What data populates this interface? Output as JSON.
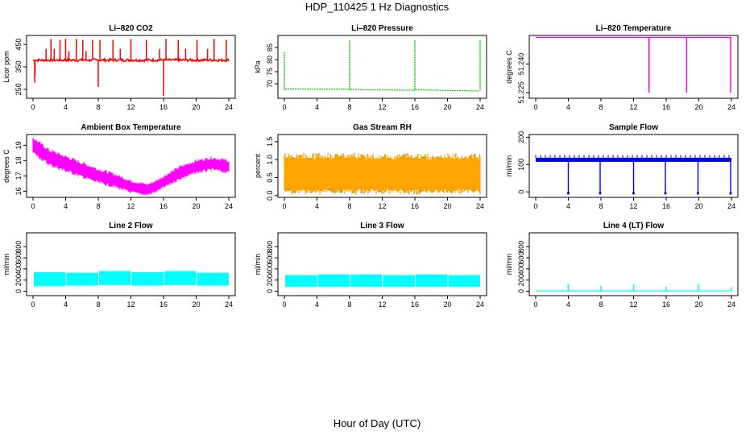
{
  "figure": {
    "title": "HDP_110425  1 Hz Diagnostics",
    "xlabel": "Hour of Day (UTC)"
  },
  "chart_data": [
    {
      "type": "line",
      "title": "Li–820 CO2",
      "ylabel": "Licor ppm",
      "color": "#ff0000",
      "xlim": [
        0,
        24
      ],
      "xticks": [
        "0",
        "4",
        "8",
        "12",
        "16",
        "20",
        "24"
      ],
      "ylim": [
        210,
        490
      ],
      "yticks": [
        250,
        350,
        450
      ],
      "ytick_labels": [
        "250",
        "350",
        "450"
      ],
      "baseline": 380,
      "noise": 6,
      "spikes": [
        {
          "x": 0.2,
          "y": 280
        },
        {
          "x": 0.25,
          "y": 310
        },
        {
          "x": 1.6,
          "y": 430
        },
        {
          "x": 2.2,
          "y": 475
        },
        {
          "x": 2.6,
          "y": 430
        },
        {
          "x": 3.3,
          "y": 470
        },
        {
          "x": 4.0,
          "y": 475
        },
        {
          "x": 4.4,
          "y": 420
        },
        {
          "x": 5.3,
          "y": 475
        },
        {
          "x": 6.1,
          "y": 470
        },
        {
          "x": 6.5,
          "y": 420
        },
        {
          "x": 7.3,
          "y": 470
        },
        {
          "x": 8.0,
          "y": 260
        },
        {
          "x": 8.2,
          "y": 470
        },
        {
          "x": 9.8,
          "y": 470
        },
        {
          "x": 10.7,
          "y": 430
        },
        {
          "x": 12.0,
          "y": 475
        },
        {
          "x": 13.9,
          "y": 470
        },
        {
          "x": 15.5,
          "y": 430
        },
        {
          "x": 16.0,
          "y": 220
        },
        {
          "x": 16.3,
          "y": 475
        },
        {
          "x": 17.8,
          "y": 470
        },
        {
          "x": 18.7,
          "y": 430
        },
        {
          "x": 20.1,
          "y": 470
        },
        {
          "x": 21.4,
          "y": 430
        },
        {
          "x": 22.2,
          "y": 475
        },
        {
          "x": 23.7,
          "y": 470
        }
      ]
    },
    {
      "type": "line",
      "title": "Li–820 Pressure",
      "ylabel": "kPa",
      "color": "#00cc00",
      "xlim": [
        0,
        24
      ],
      "xticks": [
        "0",
        "4",
        "8",
        "12",
        "16",
        "20",
        "24"
      ],
      "ylim": [
        64,
        90
      ],
      "yticks": [
        70,
        75,
        80,
        85
      ],
      "ytick_labels": [
        "70",
        "75",
        "80",
        "85"
      ],
      "segments": [
        [
          0.1,
          67.9
        ],
        [
          4.0,
          67.8
        ],
        [
          7.9,
          67.8
        ],
        [
          8.1,
          67.6
        ],
        [
          15.9,
          67.3
        ],
        [
          16.1,
          67.5
        ],
        [
          23.9,
          67.0
        ]
      ],
      "spikes": [
        {
          "x": 0.0,
          "y": 83
        },
        {
          "x": 8.0,
          "y": 88
        },
        {
          "x": 16.0,
          "y": 88
        },
        {
          "x": 24.0,
          "y": 88
        }
      ]
    },
    {
      "type": "line",
      "title": "Li–820 Temperature",
      "ylabel": "degrees C",
      "color": "#ff00ff",
      "xlim": [
        0,
        24
      ],
      "xticks": [
        "0",
        "4",
        "8",
        "12",
        "16",
        "20",
        "24"
      ],
      "ylim": [
        51.222,
        51.255
      ],
      "yticks": [
        51.225,
        51.24
      ],
      "ytick_labels": [
        "51.225",
        "51.240"
      ],
      "baseline": 51.254,
      "drops": [
        {
          "x": 13.9,
          "y": 51.225
        },
        {
          "x": 18.5,
          "y": 51.225
        },
        {
          "x": 23.9,
          "y": 51.225
        }
      ]
    },
    {
      "type": "band",
      "title": "Ambient Box Temperature",
      "ylabel": "degrees C",
      "color": "#ff00ff",
      "xlim": [
        0,
        24
      ],
      "xticks": [
        "0",
        "4",
        "8",
        "12",
        "16",
        "20",
        "24"
      ],
      "ylim": [
        15.6,
        19.7
      ],
      "yticks": [
        16,
        17,
        18,
        19
      ],
      "ytick_labels": [
        "16",
        "17",
        "18",
        "19"
      ],
      "center": [
        [
          0,
          19.0
        ],
        [
          1,
          18.6
        ],
        [
          2,
          18.2
        ],
        [
          4,
          17.8
        ],
        [
          6,
          17.4
        ],
        [
          8,
          17.0
        ],
        [
          10,
          16.7
        ],
        [
          12,
          16.3
        ],
        [
          14,
          16.1
        ],
        [
          15,
          16.3
        ],
        [
          16,
          16.6
        ],
        [
          18,
          17.2
        ],
        [
          20,
          17.6
        ],
        [
          22,
          17.8
        ],
        [
          24,
          17.6
        ]
      ],
      "half_width": [
        [
          0,
          0.5
        ],
        [
          8,
          0.45
        ],
        [
          14,
          0.35
        ],
        [
          18,
          0.4
        ],
        [
          24,
          0.4
        ]
      ]
    },
    {
      "type": "band",
      "title": "Gas Stream RH",
      "ylabel": "percent",
      "color": "#ffa500",
      "edge_color": "#8c7a00",
      "xlim": [
        0,
        24
      ],
      "xticks": [
        "0",
        "4",
        "8",
        "12",
        "16",
        "20",
        "24"
      ],
      "ylim": [
        -0.05,
        1.7
      ],
      "yticks": [
        0.0,
        0.5,
        1.0,
        1.5
      ],
      "ytick_labels": [
        "0.0",
        "0.5",
        "1.0",
        "1.5"
      ],
      "lower": 0.12,
      "upper": 1.05,
      "jitter": 0.12
    },
    {
      "type": "line",
      "title": "Sample Flow",
      "ylabel": "ml/min",
      "color": "#0000ee",
      "xlim": [
        0,
        24
      ],
      "xticks": [
        "0",
        "4",
        "8",
        "12",
        "16",
        "20",
        "24"
      ],
      "ylim": [
        -20,
        210
      ],
      "yticks": [
        0,
        100,
        200
      ],
      "ytick_labels": [
        "0",
        "100",
        "200"
      ],
      "baseline": 110,
      "upper": 125,
      "drops": [
        {
          "x": 4.0,
          "y": -5
        },
        {
          "x": 7.9,
          "y": -5
        },
        {
          "x": 12.0,
          "y": -5
        },
        {
          "x": 15.9,
          "y": -5
        },
        {
          "x": 19.9,
          "y": -5
        },
        {
          "x": 23.9,
          "y": -5
        }
      ]
    },
    {
      "type": "band",
      "title": "Line 2 Flow",
      "ylabel": "ml/min",
      "color": "#00ffff",
      "xlim": [
        0,
        24
      ],
      "xticks": [
        "0",
        "4",
        "8",
        "12",
        "16",
        "20",
        "24"
      ],
      "ylim": [
        -80,
        1050
      ],
      "yticks": [
        0,
        200,
        400,
        600,
        800
      ],
      "ytick_labels": [
        "0",
        "200",
        "400",
        "600",
        "800"
      ],
      "blocks": [
        [
          0.1,
          4.0,
          90,
          340
        ],
        [
          4.1,
          8.0,
          100,
          330
        ],
        [
          8.1,
          12.0,
          110,
          360
        ],
        [
          12.1,
          16.0,
          100,
          340
        ],
        [
          16.1,
          20.0,
          110,
          360
        ],
        [
          20.1,
          24.0,
          100,
          330
        ]
      ]
    },
    {
      "type": "band",
      "title": "Line 3 Flow",
      "ylabel": "ml/min",
      "color": "#00ffff",
      "xlim": [
        0,
        24
      ],
      "xticks": [
        "0",
        "4",
        "8",
        "12",
        "16",
        "20",
        "24"
      ],
      "ylim": [
        -80,
        1050
      ],
      "yticks": [
        0,
        200,
        400,
        600,
        800
      ],
      "ytick_labels": [
        "0",
        "200",
        "400",
        "600",
        "800"
      ],
      "blocks": [
        [
          0.1,
          4.0,
          80,
          290
        ],
        [
          4.1,
          8.0,
          80,
          300
        ],
        [
          8.1,
          12.0,
          80,
          300
        ],
        [
          12.1,
          16.0,
          80,
          290
        ],
        [
          16.1,
          20.0,
          80,
          300
        ],
        [
          20.1,
          24.0,
          80,
          290
        ]
      ]
    },
    {
      "type": "line",
      "title": "Line 4 (LT) Flow",
      "ylabel": "ml/min",
      "color": "#00ffff",
      "xlim": [
        0,
        24
      ],
      "xticks": [
        "0",
        "4",
        "8",
        "12",
        "16",
        "20",
        "24"
      ],
      "ylim": [
        -80,
        1050
      ],
      "yticks": [
        0,
        200,
        400,
        600,
        800
      ],
      "ytick_labels": [
        "0",
        "200",
        "400",
        "600",
        "800"
      ],
      "baseline": 5,
      "spikes": [
        {
          "x": 4.0,
          "y": 130
        },
        {
          "x": 8.0,
          "y": 90
        },
        {
          "x": 12.0,
          "y": 120
        },
        {
          "x": 16.0,
          "y": 80
        },
        {
          "x": 20.0,
          "y": 120
        },
        {
          "x": 24.0,
          "y": 70
        }
      ]
    }
  ]
}
